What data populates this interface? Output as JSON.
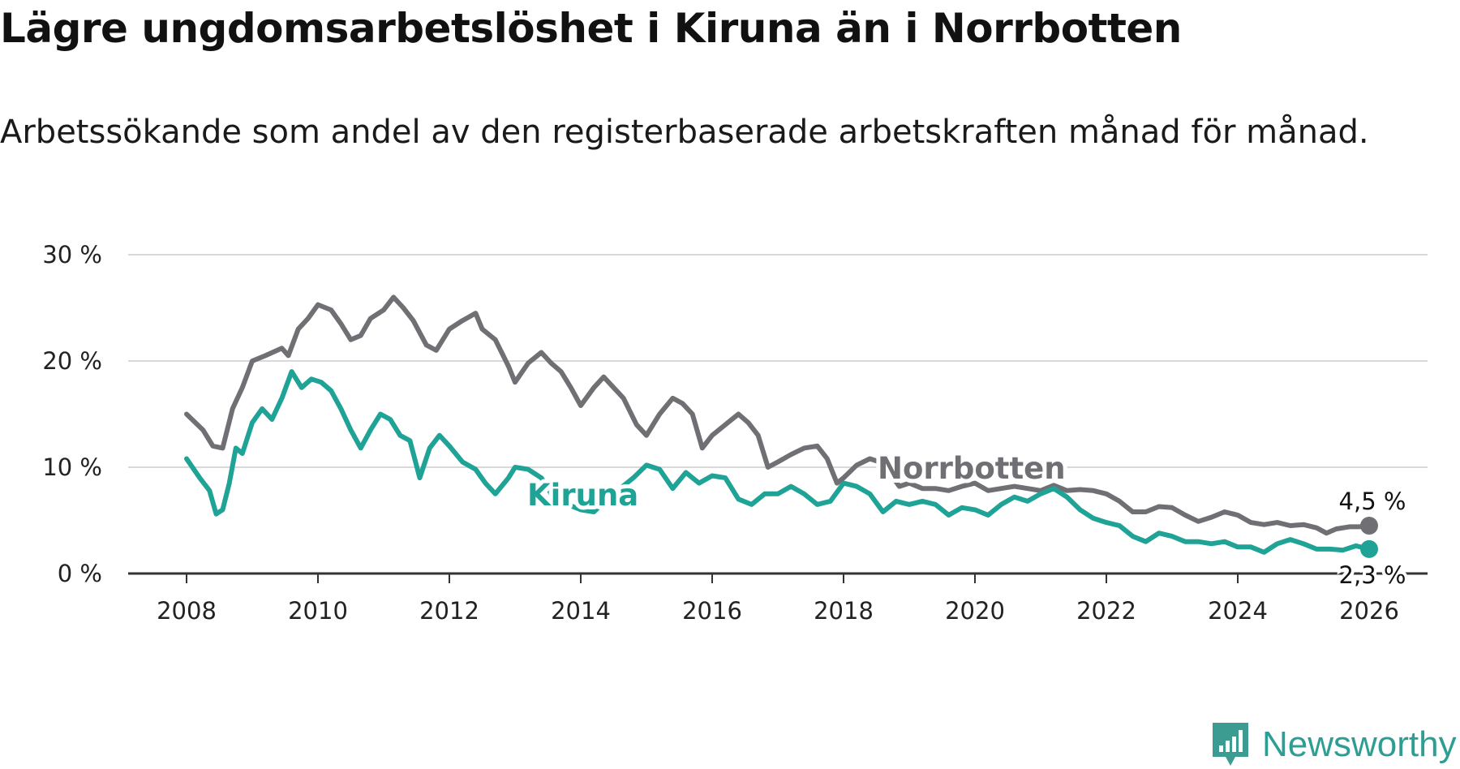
{
  "title": "Lägre ungdomsarbetslöshet i Kiruna än i Norrbotten",
  "subtitle": "Arbetssökande som andel av den registerbaserade arbetskraften månad för månad.",
  "brand": {
    "name": "Newsworthy",
    "color": "#3c9c92"
  },
  "chart_data": {
    "type": "line",
    "title": "Lägre ungdomsarbetslöshet i Kiruna än i Norrbotten",
    "subtitle": "Arbetssökande som andel av den registerbaserade arbetskraften månad för månad.",
    "xlabel": "",
    "ylabel": "",
    "xlim": [
      2007.1,
      2027.0
    ],
    "ylim": [
      0,
      30
    ],
    "x_ticks": [
      2008,
      2010,
      2012,
      2014,
      2016,
      2018,
      2020,
      2022,
      2024,
      2026
    ],
    "x_tick_labels": [
      "2008",
      "2010",
      "2012",
      "2014",
      "2016",
      "2018",
      "2020",
      "2022",
      "2024",
      "2026"
    ],
    "y_ticks": [
      0,
      10,
      20,
      30
    ],
    "y_tick_labels": [
      "0 %",
      "10 %",
      "20 %",
      "30 %"
    ],
    "grid": "horizontal",
    "series": [
      {
        "name": "Norrbotten",
        "color": "#6f6f74",
        "end_label": "4,5 %",
        "x": [
          2008.0,
          2008.25,
          2008.4,
          2008.55,
          2008.7,
          2008.85,
          2009.0,
          2009.2,
          2009.45,
          2009.55,
          2009.7,
          2009.85,
          2010.0,
          2010.2,
          2010.35,
          2010.5,
          2010.65,
          2010.8,
          2011.0,
          2011.15,
          2011.3,
          2011.45,
          2011.65,
          2011.8,
          2012.0,
          2012.2,
          2012.4,
          2012.5,
          2012.7,
          2012.9,
          2013.0,
          2013.2,
          2013.4,
          2013.55,
          2013.7,
          2013.85,
          2014.0,
          2014.2,
          2014.35,
          2014.5,
          2014.65,
          2014.85,
          2015.0,
          2015.2,
          2015.4,
          2015.55,
          2015.7,
          2015.85,
          2016.0,
          2016.2,
          2016.4,
          2016.55,
          2016.7,
          2016.85,
          2017.0,
          2017.2,
          2017.4,
          2017.6,
          2017.75,
          2017.9,
          2018.0,
          2018.2,
          2018.4,
          2018.55,
          2018.7,
          2018.85,
          2019.0,
          2019.2,
          2019.4,
          2019.6,
          2019.8,
          2020.0,
          2020.2,
          2020.4,
          2020.6,
          2020.8,
          2021.0,
          2021.2,
          2021.4,
          2021.6,
          2021.8,
          2022.0,
          2022.2,
          2022.4,
          2022.6,
          2022.8,
          2023.0,
          2023.2,
          2023.4,
          2023.6,
          2023.8,
          2024.0,
          2024.2,
          2024.4,
          2024.6,
          2024.8,
          2025.0,
          2025.2,
          2025.35,
          2025.5,
          2025.7,
          2025.85,
          2026.0
        ],
        "values": [
          15.0,
          13.5,
          12.0,
          11.8,
          15.5,
          17.5,
          20.0,
          20.5,
          21.2,
          20.5,
          23.0,
          24.0,
          25.3,
          24.8,
          23.5,
          22.0,
          22.4,
          24.0,
          24.8,
          26.0,
          25.0,
          23.8,
          21.5,
          21.0,
          23.0,
          23.8,
          24.5,
          23.0,
          22.0,
          19.5,
          18.0,
          19.8,
          20.8,
          19.8,
          19.0,
          17.5,
          15.8,
          17.5,
          18.5,
          17.5,
          16.5,
          14.0,
          13.0,
          15.0,
          16.5,
          16.0,
          15.0,
          11.8,
          13.0,
          14.0,
          15.0,
          14.2,
          13.0,
          10.0,
          10.5,
          11.2,
          11.8,
          12.0,
          10.8,
          8.5,
          9.0,
          10.2,
          10.8,
          10.5,
          9.5,
          8.2,
          8.5,
          8.0,
          8.0,
          7.8,
          8.2,
          8.5,
          7.8,
          8.0,
          8.2,
          8.0,
          7.8,
          8.3,
          7.8,
          7.9,
          7.8,
          7.5,
          6.8,
          5.8,
          5.8,
          6.3,
          6.2,
          5.5,
          4.9,
          5.3,
          5.8,
          5.5,
          4.8,
          4.6,
          4.8,
          4.5,
          4.6,
          4.3,
          3.8,
          4.2,
          4.4,
          4.4,
          4.5
        ]
      },
      {
        "name": "Kiruna",
        "color": "#1fa396",
        "end_label": "2,3 %",
        "x": [
          2008.0,
          2008.2,
          2008.35,
          2008.45,
          2008.55,
          2008.65,
          2008.75,
          2008.85,
          2009.0,
          2009.15,
          2009.3,
          2009.45,
          2009.6,
          2009.75,
          2009.9,
          2010.05,
          2010.2,
          2010.35,
          2010.5,
          2010.65,
          2010.8,
          2010.95,
          2011.1,
          2011.25,
          2011.4,
          2011.55,
          2011.7,
          2011.85,
          2012.0,
          2012.2,
          2012.4,
          2012.55,
          2012.7,
          2012.9,
          2013.0,
          2013.2,
          2013.4,
          2013.6,
          2013.8,
          2014.0,
          2014.2,
          2014.4,
          2014.6,
          2014.8,
          2015.0,
          2015.2,
          2015.4,
          2015.6,
          2015.8,
          2016.0,
          2016.2,
          2016.4,
          2016.6,
          2016.8,
          2017.0,
          2017.2,
          2017.4,
          2017.6,
          2017.8,
          2018.0,
          2018.2,
          2018.4,
          2018.6,
          2018.8,
          2019.0,
          2019.2,
          2019.4,
          2019.6,
          2019.8,
          2020.0,
          2020.2,
          2020.4,
          2020.6,
          2020.8,
          2021.0,
          2021.2,
          2021.4,
          2021.6,
          2021.8,
          2022.0,
          2022.2,
          2022.4,
          2022.6,
          2022.8,
          2023.0,
          2023.2,
          2023.4,
          2023.6,
          2023.8,
          2024.0,
          2024.2,
          2024.4,
          2024.6,
          2024.8,
          2025.0,
          2025.2,
          2025.4,
          2025.6,
          2025.8,
          2026.0
        ],
        "values": [
          10.8,
          9.0,
          7.8,
          5.6,
          6.0,
          8.5,
          11.8,
          11.3,
          14.2,
          15.5,
          14.5,
          16.5,
          19.0,
          17.5,
          18.3,
          18.0,
          17.2,
          15.5,
          13.5,
          11.8,
          13.5,
          15.0,
          14.5,
          13.0,
          12.5,
          9.0,
          11.8,
          13.0,
          12.0,
          10.5,
          9.8,
          8.5,
          7.5,
          9.0,
          10.0,
          9.8,
          9.0,
          7.0,
          6.5,
          6.0,
          5.8,
          7.0,
          8.0,
          9.0,
          10.2,
          9.8,
          8.0,
          9.5,
          8.5,
          9.2,
          9.0,
          7.0,
          6.5,
          7.5,
          7.5,
          8.2,
          7.5,
          6.5,
          6.8,
          8.5,
          8.2,
          7.5,
          5.8,
          6.8,
          6.5,
          6.8,
          6.5,
          5.5,
          6.2,
          6.0,
          5.5,
          6.5,
          7.2,
          6.8,
          7.5,
          8.0,
          7.2,
          6.0,
          5.2,
          4.8,
          4.5,
          3.5,
          3.0,
          3.8,
          3.5,
          3.0,
          3.0,
          2.8,
          3.0,
          2.5,
          2.5,
          2.0,
          2.8,
          3.2,
          2.8,
          2.3,
          2.3,
          2.2,
          2.6,
          2.3
        ]
      }
    ]
  }
}
